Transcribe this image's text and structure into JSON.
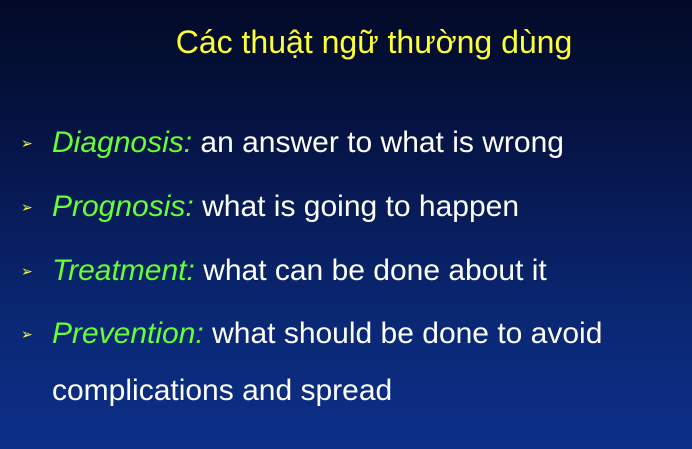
{
  "slide": {
    "title": "Các thuật ngữ thường dùng",
    "bullet_symbol": "➢",
    "items": [
      {
        "term": "Diagnosis:",
        "description": "an answer to what is wrong"
      },
      {
        "term": "Prognosis:",
        "description": "what is going to happen"
      },
      {
        "term": "Treatment:",
        "description": "what can be done about it"
      },
      {
        "term": "Prevention:",
        "description": "what should be done to avoid complications and spread"
      }
    ]
  },
  "colors": {
    "title": "#ffff33",
    "term": "#66ff33",
    "text": "#ffffff",
    "background_top": "#020a26",
    "background_bottom": "#0c2f88"
  }
}
